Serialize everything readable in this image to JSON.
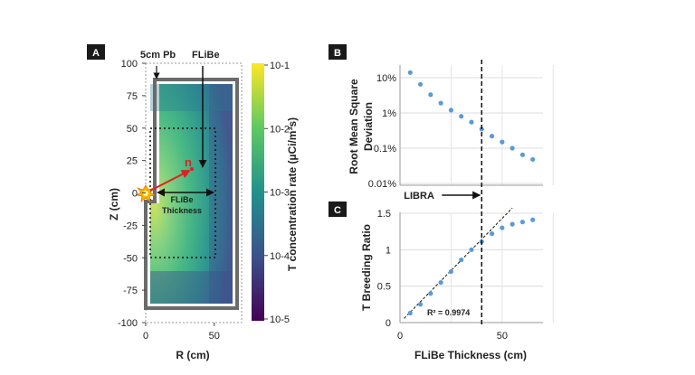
{
  "chart_data": [
    {
      "panel": "A",
      "type": "heatmap",
      "xlabel": "R (cm)",
      "ylabel": "Z (cm)",
      "xticks": [
        "0",
        "50"
      ],
      "yticks": [
        "100",
        "75",
        "50",
        "25",
        "0",
        "-25",
        "-50",
        "-75",
        "-100"
      ],
      "xlim": [
        0,
        70
      ],
      "ylim": [
        -100,
        100
      ],
      "colorbar_label": "T concentration rate (µCi/m³s)",
      "colorbar_ticks": [
        "10-1",
        "10-2",
        "10-3",
        "10-4",
        "10-5"
      ],
      "annotations": {
        "pb": "5cm Pb",
        "flibe": "FLiBe",
        "neutron": "n",
        "thickness_line1": "FLiBe",
        "thickness_line2": "Thickness"
      }
    },
    {
      "panel": "B",
      "type": "scatter",
      "xlabel": "",
      "ylabel": "Root Mean Square Deviation",
      "y_scale": "log",
      "yticks": [
        "10%",
        "1%",
        "0.1%",
        "0.01%"
      ],
      "x": [
        5,
        10,
        15,
        20,
        25,
        30,
        35,
        40,
        45,
        50,
        55,
        60,
        65
      ],
      "values": [
        14,
        6.5,
        3.3,
        1.9,
        1.2,
        0.8,
        0.55,
        0.35,
        0.22,
        0.15,
        0.1,
        0.065,
        0.048
      ],
      "grid": true
    },
    {
      "panel": "C",
      "type": "scatter",
      "xlabel": "FLiBe Thickness (cm)",
      "ylabel": "T Breeding Ratio",
      "xticks": [
        "0",
        "50"
      ],
      "yticks": [
        "0",
        "0.5",
        "1",
        "1.5"
      ],
      "xlim": [
        0,
        70
      ],
      "ylim": [
        0,
        1.5
      ],
      "x": [
        5,
        10,
        15,
        20,
        25,
        30,
        35,
        40,
        45,
        50,
        55,
        60,
        65
      ],
      "values": [
        0.13,
        0.25,
        0.4,
        0.55,
        0.7,
        0.86,
        1.0,
        1.11,
        1.22,
        1.3,
        1.35,
        1.38,
        1.41
      ],
      "fit_label": "R² = 0.9974",
      "vline_label": "LIBRA",
      "vline_x": 40,
      "grid": true
    }
  ],
  "colors": {
    "points": "#5b9bd5",
    "panel_label_bg": "#1a1a1a",
    "pb_frame": "#6b6b6b",
    "arrow_red": "#e02020"
  }
}
